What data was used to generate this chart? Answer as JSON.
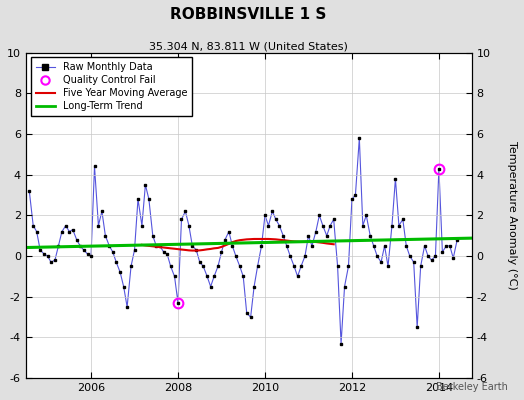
{
  "title": "ROBBINSVILLE 1 S",
  "subtitle": "35.304 N, 83.811 W (United States)",
  "ylabel": "Temperature Anomaly (°C)",
  "watermark": "Berkeley Earth",
  "ylim": [
    -6,
    10
  ],
  "xlim": [
    2004.5,
    2014.75
  ],
  "xticks": [
    2006,
    2008,
    2010,
    2012,
    2014
  ],
  "yticks": [
    -6,
    -4,
    -2,
    0,
    2,
    4,
    6,
    8,
    10
  ],
  "background_color": "#e0e0e0",
  "plot_bg_color": "#ffffff",
  "grid_color": "#c8c8c8",
  "raw_color": "#5555dd",
  "raw_marker_color": "#000000",
  "moving_avg_color": "#dd0000",
  "trend_color": "#00bb00",
  "qc_fail_color": "#ff00ff",
  "raw_data": [
    [
      2004.58,
      3.2
    ],
    [
      2004.67,
      1.5
    ],
    [
      2004.75,
      1.2
    ],
    [
      2004.83,
      0.3
    ],
    [
      2004.92,
      0.1
    ],
    [
      2005.0,
      0.0
    ],
    [
      2005.08,
      -0.3
    ],
    [
      2005.17,
      -0.2
    ],
    [
      2005.25,
      0.5
    ],
    [
      2005.33,
      1.2
    ],
    [
      2005.42,
      1.5
    ],
    [
      2005.5,
      1.2
    ],
    [
      2005.58,
      1.3
    ],
    [
      2005.67,
      0.8
    ],
    [
      2005.75,
      0.5
    ],
    [
      2005.83,
      0.3
    ],
    [
      2005.92,
      0.1
    ],
    [
      2006.0,
      0.0
    ],
    [
      2006.08,
      4.4
    ],
    [
      2006.17,
      1.5
    ],
    [
      2006.25,
      2.2
    ],
    [
      2006.33,
      1.0
    ],
    [
      2006.42,
      0.5
    ],
    [
      2006.5,
      0.2
    ],
    [
      2006.58,
      -0.3
    ],
    [
      2006.67,
      -0.8
    ],
    [
      2006.75,
      -1.5
    ],
    [
      2006.83,
      -2.5
    ],
    [
      2006.92,
      -0.5
    ],
    [
      2007.0,
      0.3
    ],
    [
      2007.08,
      2.8
    ],
    [
      2007.17,
      1.5
    ],
    [
      2007.25,
      3.5
    ],
    [
      2007.33,
      2.8
    ],
    [
      2007.42,
      1.0
    ],
    [
      2007.5,
      0.5
    ],
    [
      2007.58,
      0.5
    ],
    [
      2007.67,
      0.2
    ],
    [
      2007.75,
      0.1
    ],
    [
      2007.83,
      -0.5
    ],
    [
      2007.92,
      -1.0
    ],
    [
      2008.0,
      -2.3
    ],
    [
      2008.08,
      1.8
    ],
    [
      2008.17,
      2.2
    ],
    [
      2008.25,
      1.5
    ],
    [
      2008.33,
      0.5
    ],
    [
      2008.42,
      0.3
    ],
    [
      2008.5,
      -0.3
    ],
    [
      2008.58,
      -0.5
    ],
    [
      2008.67,
      -1.0
    ],
    [
      2008.75,
      -1.5
    ],
    [
      2008.83,
      -1.0
    ],
    [
      2008.92,
      -0.5
    ],
    [
      2009.0,
      0.2
    ],
    [
      2009.08,
      0.8
    ],
    [
      2009.17,
      1.2
    ],
    [
      2009.25,
      0.5
    ],
    [
      2009.33,
      0.0
    ],
    [
      2009.42,
      -0.5
    ],
    [
      2009.5,
      -1.0
    ],
    [
      2009.58,
      -2.8
    ],
    [
      2009.67,
      -3.0
    ],
    [
      2009.75,
      -1.5
    ],
    [
      2009.83,
      -0.5
    ],
    [
      2009.92,
      0.5
    ],
    [
      2010.0,
      2.0
    ],
    [
      2010.08,
      1.5
    ],
    [
      2010.17,
      2.2
    ],
    [
      2010.25,
      1.8
    ],
    [
      2010.33,
      1.5
    ],
    [
      2010.42,
      1.0
    ],
    [
      2010.5,
      0.5
    ],
    [
      2010.58,
      0.0
    ],
    [
      2010.67,
      -0.5
    ],
    [
      2010.75,
      -1.0
    ],
    [
      2010.83,
      -0.5
    ],
    [
      2010.92,
      0.0
    ],
    [
      2011.0,
      1.0
    ],
    [
      2011.08,
      0.5
    ],
    [
      2011.17,
      1.2
    ],
    [
      2011.25,
      2.0
    ],
    [
      2011.33,
      1.5
    ],
    [
      2011.42,
      1.0
    ],
    [
      2011.5,
      1.5
    ],
    [
      2011.58,
      1.8
    ],
    [
      2011.67,
      -0.5
    ],
    [
      2011.75,
      -4.3
    ],
    [
      2011.83,
      -1.5
    ],
    [
      2011.92,
      -0.5
    ],
    [
      2012.0,
      2.8
    ],
    [
      2012.08,
      3.0
    ],
    [
      2012.17,
      5.8
    ],
    [
      2012.25,
      1.5
    ],
    [
      2012.33,
      2.0
    ],
    [
      2012.42,
      1.0
    ],
    [
      2012.5,
      0.5
    ],
    [
      2012.58,
      0.0
    ],
    [
      2012.67,
      -0.3
    ],
    [
      2012.75,
      0.5
    ],
    [
      2012.83,
      -0.5
    ],
    [
      2012.92,
      1.5
    ],
    [
      2013.0,
      3.8
    ],
    [
      2013.08,
      1.5
    ],
    [
      2013.17,
      1.8
    ],
    [
      2013.25,
      0.5
    ],
    [
      2013.33,
      0.0
    ],
    [
      2013.42,
      -0.3
    ],
    [
      2013.5,
      -3.5
    ],
    [
      2013.58,
      -0.5
    ],
    [
      2013.67,
      0.5
    ],
    [
      2013.75,
      0.0
    ],
    [
      2013.83,
      -0.2
    ],
    [
      2013.92,
      0.0
    ],
    [
      2014.0,
      4.3
    ],
    [
      2014.08,
      0.2
    ],
    [
      2014.17,
      0.5
    ],
    [
      2014.25,
      0.5
    ],
    [
      2014.33,
      -0.1
    ],
    [
      2014.42,
      0.8
    ]
  ],
  "qc_fail_points": [
    [
      2008.0,
      -2.3
    ],
    [
      2014.0,
      4.3
    ]
  ],
  "moving_avg_data": [
    [
      2007.17,
      0.55
    ],
    [
      2007.25,
      0.52
    ],
    [
      2007.33,
      0.5
    ],
    [
      2007.42,
      0.48
    ],
    [
      2007.5,
      0.46
    ],
    [
      2007.58,
      0.44
    ],
    [
      2007.67,
      0.42
    ],
    [
      2007.75,
      0.4
    ],
    [
      2007.83,
      0.38
    ],
    [
      2007.92,
      0.36
    ],
    [
      2008.0,
      0.34
    ],
    [
      2008.08,
      0.32
    ],
    [
      2008.17,
      0.3
    ],
    [
      2008.25,
      0.28
    ],
    [
      2008.33,
      0.27
    ],
    [
      2008.42,
      0.27
    ],
    [
      2008.5,
      0.28
    ],
    [
      2008.58,
      0.3
    ],
    [
      2008.67,
      0.33
    ],
    [
      2008.75,
      0.35
    ],
    [
      2008.83,
      0.38
    ],
    [
      2008.92,
      0.4
    ],
    [
      2009.0,
      0.45
    ],
    [
      2009.08,
      0.52
    ],
    [
      2009.17,
      0.6
    ],
    [
      2009.25,
      0.68
    ],
    [
      2009.33,
      0.74
    ],
    [
      2009.42,
      0.78
    ],
    [
      2009.5,
      0.8
    ],
    [
      2009.58,
      0.82
    ],
    [
      2009.67,
      0.83
    ],
    [
      2009.75,
      0.84
    ],
    [
      2009.83,
      0.84
    ],
    [
      2009.92,
      0.84
    ],
    [
      2010.0,
      0.84
    ],
    [
      2010.08,
      0.84
    ],
    [
      2010.17,
      0.83
    ],
    [
      2010.25,
      0.82
    ],
    [
      2010.33,
      0.8
    ],
    [
      2010.42,
      0.78
    ],
    [
      2010.5,
      0.76
    ],
    [
      2010.58,
      0.74
    ],
    [
      2010.67,
      0.72
    ],
    [
      2010.75,
      0.71
    ],
    [
      2010.83,
      0.7
    ],
    [
      2010.92,
      0.7
    ],
    [
      2011.0,
      0.7
    ],
    [
      2011.08,
      0.7
    ],
    [
      2011.17,
      0.69
    ],
    [
      2011.25,
      0.67
    ],
    [
      2011.33,
      0.65
    ],
    [
      2011.42,
      0.62
    ],
    [
      2011.5,
      0.6
    ],
    [
      2011.58,
      0.58
    ]
  ],
  "trend_x": [
    2004.5,
    2014.75
  ],
  "trend_y": [
    0.42,
    0.88
  ]
}
